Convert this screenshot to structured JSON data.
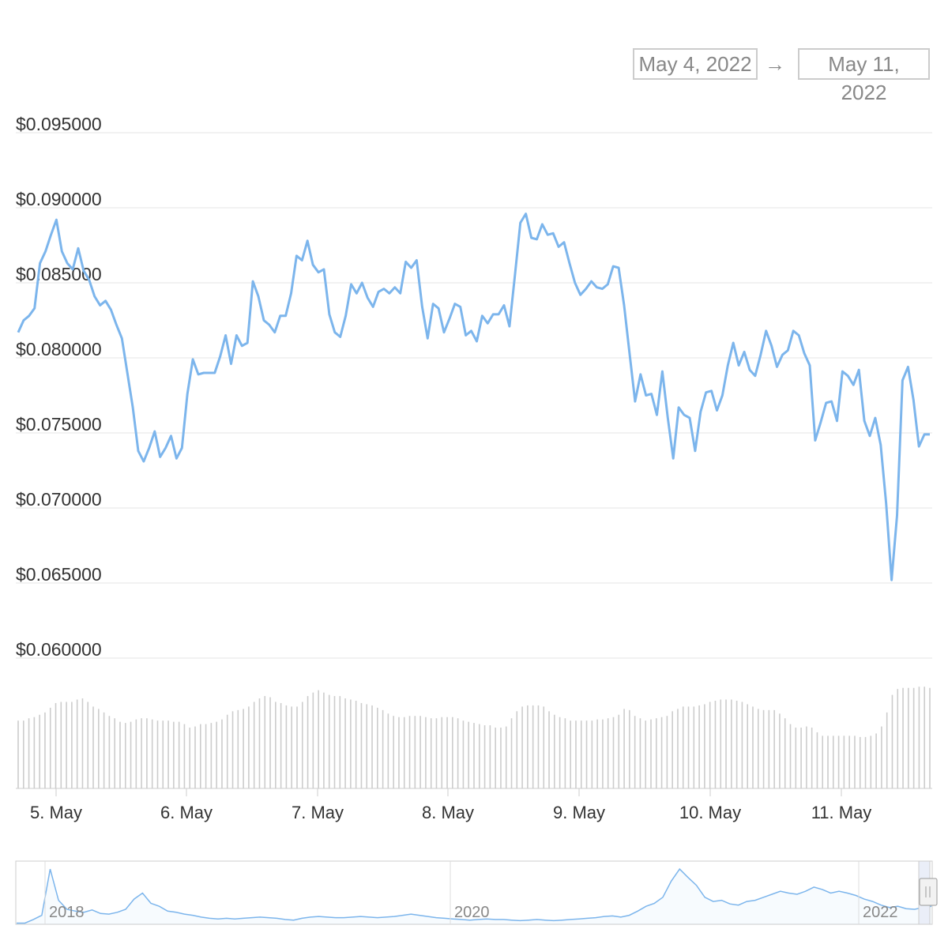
{
  "range": {
    "from": "May 4, 2022",
    "arrow": "→",
    "to": "May 11, 2022"
  },
  "colors": {
    "line": "#7cb5ec",
    "volume": "#cccccc",
    "grid": "#e6e6e6",
    "navigator": "#7cb5ec"
  },
  "chart_data": {
    "type": "line",
    "title": "",
    "xlabel": "",
    "ylabel": "",
    "ylim": [
      0.06,
      0.095
    ],
    "y_ticks": [
      "$0.095000",
      "$0.090000",
      "$0.085000",
      "$0.080000",
      "$0.075000",
      "$0.070000",
      "$0.065000",
      "$0.060000"
    ],
    "x_ticks": [
      "5. May",
      "6. May",
      "7. May",
      "8. May",
      "9. May",
      "10. May",
      "11. May"
    ],
    "grid": true,
    "series": [
      {
        "values": [
          0.0817,
          0.0825,
          0.0828,
          0.0833,
          0.0863,
          0.0871,
          0.0882,
          0.0892,
          0.0871,
          0.0863,
          0.0859,
          0.0873,
          0.0858,
          0.0852,
          0.0841,
          0.0835,
          0.0838,
          0.0832,
          0.0822,
          0.0813,
          0.079,
          0.0767,
          0.0738,
          0.0731,
          0.074,
          0.0751,
          0.0734,
          0.074,
          0.0748,
          0.0733,
          0.074,
          0.0776,
          0.0799,
          0.0789,
          0.079,
          0.079,
          0.079,
          0.0801,
          0.0815,
          0.0796,
          0.0815,
          0.0808,
          0.081,
          0.0851,
          0.0841,
          0.0825,
          0.0822,
          0.0817,
          0.0828,
          0.0828,
          0.0843,
          0.0868,
          0.0865,
          0.0878,
          0.0862,
          0.0857,
          0.0859,
          0.0829,
          0.0817,
          0.0814,
          0.0828,
          0.0849,
          0.0843,
          0.085,
          0.084,
          0.0834,
          0.0844,
          0.0846,
          0.0843,
          0.0847,
          0.0843,
          0.0864,
          0.086,
          0.0865,
          0.0834,
          0.0813,
          0.0836,
          0.0833,
          0.0817,
          0.0826,
          0.0836,
          0.0834,
          0.0815,
          0.0818,
          0.0811,
          0.0828,
          0.0823,
          0.0829,
          0.0829,
          0.0835,
          0.0821,
          0.0855,
          0.089,
          0.0896,
          0.088,
          0.0879,
          0.0889,
          0.0882,
          0.0883,
          0.0874,
          0.0877,
          0.0863,
          0.085,
          0.0842,
          0.0846,
          0.0851,
          0.0847,
          0.0846,
          0.0849,
          0.0861,
          0.086,
          0.0835,
          0.0803,
          0.0771,
          0.0789,
          0.0775,
          0.0776,
          0.0762,
          0.0791,
          0.076,
          0.0733,
          0.0767,
          0.0762,
          0.076,
          0.0738,
          0.0764,
          0.0777,
          0.0778,
          0.0765,
          0.0775,
          0.0795,
          0.081,
          0.0795,
          0.0804,
          0.0792,
          0.0788,
          0.0802,
          0.0818,
          0.0808,
          0.0794,
          0.0802,
          0.0805,
          0.0818,
          0.0815,
          0.0803,
          0.0795,
          0.0745,
          0.0757,
          0.077,
          0.0771,
          0.0758,
          0.0791,
          0.0788,
          0.0782,
          0.0792,
          0.0758,
          0.0748,
          0.076,
          0.0742,
          0.0703,
          0.0652,
          0.0695,
          0.0785,
          0.0794,
          0.0772,
          0.0741,
          0.0749,
          0.0749
        ]
      }
    ],
    "volume": [
      0.58,
      0.58,
      0.6,
      0.61,
      0.63,
      0.65,
      0.69,
      0.73,
      0.74,
      0.74,
      0.74,
      0.76,
      0.77,
      0.74,
      0.7,
      0.68,
      0.65,
      0.62,
      0.6,
      0.57,
      0.56,
      0.57,
      0.59,
      0.6,
      0.6,
      0.59,
      0.58,
      0.58,
      0.58,
      0.57,
      0.57,
      0.55,
      0.52,
      0.53,
      0.55,
      0.55,
      0.56,
      0.57,
      0.59,
      0.63,
      0.66,
      0.67,
      0.68,
      0.7,
      0.74,
      0.77,
      0.79,
      0.78,
      0.74,
      0.73,
      0.71,
      0.7,
      0.7,
      0.74,
      0.79,
      0.82,
      0.84,
      0.82,
      0.8,
      0.79,
      0.79,
      0.77,
      0.76,
      0.75,
      0.73,
      0.72,
      0.71,
      0.69,
      0.67,
      0.64,
      0.62,
      0.61,
      0.61,
      0.62,
      0.62,
      0.62,
      0.61,
      0.6,
      0.6,
      0.61,
      0.61,
      0.61,
      0.6,
      0.58,
      0.57,
      0.56,
      0.55,
      0.54,
      0.54,
      0.52,
      0.52,
      0.53,
      0.6,
      0.66,
      0.7,
      0.71,
      0.71,
      0.71,
      0.7,
      0.66,
      0.63,
      0.61,
      0.6,
      0.58,
      0.58,
      0.58,
      0.58,
      0.58,
      0.59,
      0.59,
      0.6,
      0.61,
      0.63,
      0.68,
      0.67,
      0.62,
      0.6,
      0.58,
      0.59,
      0.6,
      0.61,
      0.62,
      0.66,
      0.68,
      0.7,
      0.7,
      0.7,
      0.71,
      0.72,
      0.74,
      0.75,
      0.76,
      0.76,
      0.76,
      0.75,
      0.74,
      0.72,
      0.7,
      0.68,
      0.67,
      0.67,
      0.67,
      0.64,
      0.6,
      0.55,
      0.52,
      0.52,
      0.53,
      0.52,
      0.48,
      0.45,
      0.45,
      0.45,
      0.45,
      0.45,
      0.45,
      0.45,
      0.44,
      0.44,
      0.45,
      0.47,
      0.53,
      0.65,
      0.8,
      0.85,
      0.86,
      0.86,
      0.86,
      0.87,
      0.87,
      0.86
    ]
  },
  "navigator": {
    "ticks": [
      "2018",
      "2020",
      "2022"
    ],
    "values": [
      0.02,
      0.02,
      0.08,
      0.15,
      0.92,
      0.4,
      0.25,
      0.22,
      0.2,
      0.24,
      0.18,
      0.17,
      0.2,
      0.25,
      0.42,
      0.52,
      0.35,
      0.3,
      0.22,
      0.2,
      0.17,
      0.15,
      0.12,
      0.1,
      0.09,
      0.1,
      0.09,
      0.1,
      0.11,
      0.12,
      0.11,
      0.1,
      0.08,
      0.07,
      0.1,
      0.12,
      0.13,
      0.12,
      0.11,
      0.11,
      0.12,
      0.13,
      0.12,
      0.11,
      0.12,
      0.13,
      0.15,
      0.17,
      0.15,
      0.13,
      0.11,
      0.1,
      0.09,
      0.08,
      0.07,
      0.08,
      0.09,
      0.08,
      0.08,
      0.07,
      0.06,
      0.07,
      0.08,
      0.07,
      0.06,
      0.07,
      0.08,
      0.09,
      0.1,
      0.11,
      0.13,
      0.14,
      0.12,
      0.15,
      0.22,
      0.3,
      0.35,
      0.45,
      0.72,
      0.92,
      0.78,
      0.65,
      0.45,
      0.38,
      0.4,
      0.34,
      0.32,
      0.38,
      0.4,
      0.45,
      0.5,
      0.55,
      0.52,
      0.5,
      0.55,
      0.62,
      0.58,
      0.52,
      0.55,
      0.52,
      0.48,
      0.42,
      0.38,
      0.32,
      0.28,
      0.3,
      0.26,
      0.25,
      0.28,
      0.3
    ]
  }
}
